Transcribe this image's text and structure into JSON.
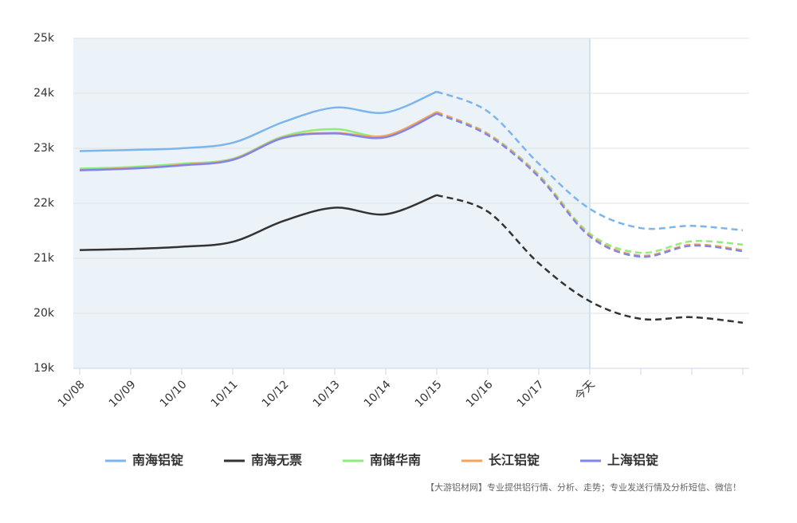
{
  "chart_data": {
    "type": "line",
    "categories": [
      "10/08",
      "10/09",
      "10/10",
      "10/11",
      "10/12",
      "10/13",
      "10/14",
      "10/15",
      "10/16",
      "10/17",
      "今天",
      null,
      null,
      null
    ],
    "series": [
      {
        "name": "南海铝锭",
        "color": "#7cb5ec",
        "values": [
          22950,
          22970,
          23000,
          23100,
          23480,
          23740,
          23650,
          24030,
          23670,
          22720,
          21900,
          21550,
          21590,
          21510
        ]
      },
      {
        "name": "南海无票",
        "color": "#333333",
        "values": [
          21150,
          21170,
          21210,
          21300,
          21680,
          21920,
          21800,
          22150,
          21850,
          20910,
          20220,
          19900,
          19930,
          19830
        ]
      },
      {
        "name": "南储华南",
        "color": "#90ed7d",
        "values": [
          22630,
          22660,
          22720,
          22810,
          23220,
          23350,
          23220,
          23650,
          23270,
          22520,
          21450,
          21100,
          21310,
          21250
        ]
      },
      {
        "name": "长江铝锭",
        "color": "#f7a35c",
        "values": [
          22610,
          22640,
          22700,
          22800,
          23200,
          23280,
          23230,
          23660,
          23260,
          22500,
          21420,
          21050,
          21250,
          21150
        ]
      },
      {
        "name": "上海铝锭",
        "color": "#8085e9",
        "values": [
          22600,
          22630,
          22690,
          22790,
          23190,
          23270,
          23200,
          23630,
          23240,
          22480,
          21400,
          21030,
          21230,
          21130
        ]
      }
    ],
    "ylim": [
      19000,
      25000
    ],
    "yticks": [
      {
        "value": 19000,
        "label": "19k"
      },
      {
        "value": 20000,
        "label": "20k"
      },
      {
        "value": 21000,
        "label": "21k"
      },
      {
        "value": 22000,
        "label": "22k"
      },
      {
        "value": 23000,
        "label": "23k"
      },
      {
        "value": 24000,
        "label": "24k"
      },
      {
        "value": 25000,
        "label": "25k"
      }
    ],
    "grid": true,
    "dashed_from_index": 7,
    "shaded_until_index": 10,
    "legend": "bottom",
    "note": "【大游铝材网】专业提供铝行情、分析、走势；专业发送行情及分析短信、微信！"
  }
}
